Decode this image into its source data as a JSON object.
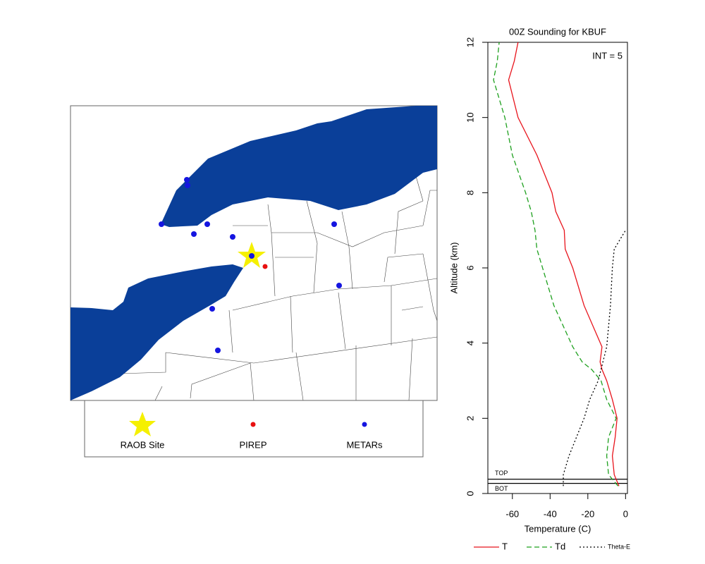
{
  "map": {
    "legend": [
      "RAOB Site",
      "PIREP",
      "METARs"
    ]
  },
  "chart_data": {
    "type": "line",
    "title": "00Z Sounding for KBUF",
    "xlabel": "Temperature (C)",
    "ylabel": "Altitude (km)",
    "annotation": "INT = 5",
    "levels": [
      {
        "label": "TOP",
        "value": 0.38
      },
      {
        "label": "BOT",
        "value": 0.27
      }
    ],
    "xlim": [
      -73,
      1
    ],
    "xticks": [
      -60,
      -40,
      -20,
      0
    ],
    "ylim": [
      0,
      12
    ],
    "yticks": [
      0,
      2,
      4,
      6,
      8,
      10,
      12
    ],
    "y": [
      0.2,
      0.5,
      1,
      1.5,
      2,
      2.5,
      3,
      3.3,
      3.5,
      3.9,
      5,
      6,
      6.5,
      7,
      7.5,
      8,
      9,
      10,
      11,
      11.5,
      12
    ],
    "series": [
      {
        "name": "T",
        "color": "#e8141c",
        "dash": "",
        "values": [
          -3.5,
          -6,
          -7,
          -5.5,
          -4.5,
          -7,
          -10,
          -12.5,
          -13.5,
          -12.5,
          -22,
          -28,
          -32,
          -32.5,
          -37,
          -39,
          -47,
          -57,
          -62,
          -59,
          -57
        ]
      },
      {
        "name": "Td",
        "color": "#1ea01e",
        "dash": "7 4",
        "values": [
          -4,
          -9,
          -10,
          -9,
          -5,
          -10,
          -13,
          -18,
          -23,
          -28,
          -38,
          -44,
          -47,
          -48,
          -50,
          -53,
          -60,
          -64,
          -70,
          -68,
          -67
        ]
      },
      {
        "name": "Theta-E",
        "color": "#000000",
        "dash": "2 3",
        "values": [
          -33,
          -33,
          -30,
          -26,
          -22,
          -19,
          -14.5,
          -13,
          -12,
          -10,
          -8,
          -7,
          -6,
          0,
          null,
          null,
          null,
          null,
          null,
          null,
          null
        ]
      }
    ]
  }
}
